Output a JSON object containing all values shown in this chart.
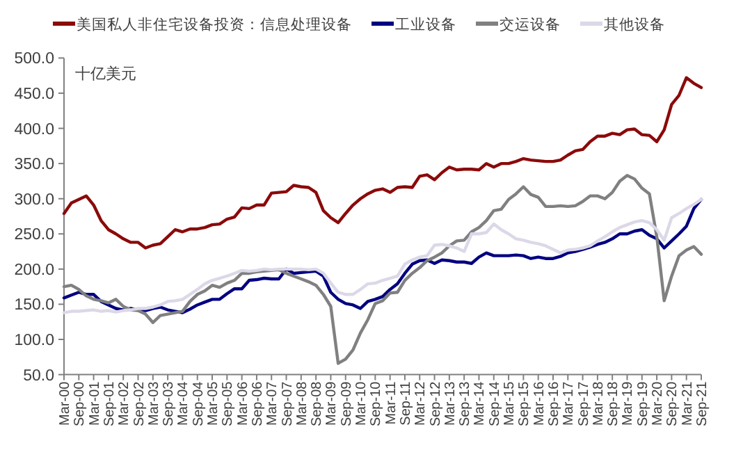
{
  "chart_data": {
    "type": "line",
    "legend": "top",
    "grid": false,
    "marker": "none",
    "line_style": "solid",
    "annotations": [
      "十亿美元"
    ],
    "ylim": [
      50,
      500
    ],
    "yticks": [
      {
        "value": 50,
        "label": "50.0"
      },
      {
        "value": 100,
        "label": "100.0"
      },
      {
        "value": 150,
        "label": "150.0"
      },
      {
        "value": 200,
        "label": "200.0"
      },
      {
        "value": 250,
        "label": "250.0"
      },
      {
        "value": 300,
        "label": "300.0"
      },
      {
        "value": 350,
        "label": "350.0"
      },
      {
        "value": 400,
        "label": "400.0"
      },
      {
        "value": 450,
        "label": "450.0"
      },
      {
        "value": 500,
        "label": "500.0"
      }
    ],
    "categories": [
      "Mar-00",
      null,
      "Sep-00",
      null,
      "Mar-01",
      null,
      "Sep-01",
      null,
      "Mar-02",
      null,
      "Sep-02",
      null,
      "Mar-03",
      null,
      "Sep-03",
      null,
      "Mar-04",
      null,
      "Sep-04",
      null,
      "Mar-05",
      null,
      "Sep-05",
      null,
      "Mar-06",
      null,
      "Sep-06",
      null,
      "Mar-07",
      null,
      "Sep-07",
      null,
      "Mar-08",
      null,
      "Sep-08",
      null,
      "Mar-09",
      null,
      "Sep-09",
      null,
      "Mar-10",
      null,
      "Sep-10",
      null,
      "Mar-11",
      null,
      "Sep-11",
      null,
      "Mar-12",
      null,
      "Sep-12",
      null,
      "Mar-13",
      null,
      "Sep-13",
      null,
      "Mar-14",
      null,
      "Sep-14",
      null,
      "Mar-15",
      null,
      "Sep-15",
      null,
      "Mar-16",
      null,
      "Sep-16",
      null,
      "Mar-17",
      null,
      "Sep-17",
      null,
      "Mar-18",
      null,
      "Sep-18",
      null,
      "Mar-19",
      null,
      "Sep-19",
      null,
      "Mar-20",
      null,
      "Sep-20",
      null,
      "Mar-21",
      null,
      "Sep-21"
    ],
    "series": [
      {
        "name": "美国私人非住宅设备投资：信息处理设备",
        "color": "#8b0a0a",
        "values": [
          279,
          294,
          299,
          304,
          291,
          269,
          256,
          250,
          243,
          238,
          238,
          230,
          234,
          236,
          246,
          256,
          253,
          257,
          257,
          259,
          263,
          264,
          271,
          274,
          287,
          286,
          291,
          291,
          308,
          309,
          310,
          319,
          317,
          316,
          309,
          283,
          273,
          266,
          279,
          291,
          300,
          307,
          312,
          314,
          309,
          316,
          317,
          316,
          332,
          334,
          327,
          337,
          345,
          341,
          342,
          342,
          341,
          350,
          345,
          350,
          350,
          353,
          357,
          355,
          354,
          353,
          353,
          355,
          362,
          368,
          370,
          381,
          389,
          389,
          393,
          391,
          398,
          399,
          391,
          390,
          381,
          398,
          434,
          447,
          472,
          464,
          458
        ]
      },
      {
        "name": "工业设备",
        "color": "#000080",
        "values": [
          159,
          163,
          167,
          164,
          164,
          154,
          149,
          144,
          142,
          144,
          142,
          141,
          144,
          146,
          142,
          140,
          138,
          143,
          149,
          153,
          157,
          157,
          165,
          172,
          172,
          184,
          185,
          187,
          186,
          186,
          200,
          194,
          195,
          196,
          197,
          190,
          167,
          157,
          151,
          149,
          144,
          154,
          157,
          161,
          171,
          179,
          194,
          207,
          212,
          213,
          208,
          213,
          212,
          210,
          210,
          208,
          217,
          223,
          219,
          219,
          219,
          220,
          219,
          215,
          217,
          215,
          215,
          218,
          223,
          225,
          228,
          231,
          235,
          238,
          243,
          250,
          250,
          254,
          256,
          248,
          243,
          230,
          240,
          250,
          261,
          286,
          299
        ]
      },
      {
        "name": "交运设备",
        "color": "#808080",
        "values": [
          175,
          177,
          171,
          162,
          157,
          155,
          152,
          157,
          147,
          142,
          141,
          136,
          124,
          134,
          136,
          138,
          140,
          154,
          164,
          169,
          177,
          174,
          180,
          184,
          194,
          194,
          196,
          197,
          198,
          199,
          194,
          190,
          186,
          182,
          177,
          164,
          147,
          66,
          72,
          85,
          109,
          128,
          151,
          155,
          166,
          167,
          184,
          194,
          202,
          212,
          217,
          223,
          233,
          240,
          241,
          253,
          259,
          269,
          283,
          285,
          299,
          307,
          317,
          306,
          302,
          289,
          289,
          290,
          289,
          290,
          296,
          304,
          304,
          300,
          309,
          325,
          333,
          328,
          315,
          307,
          246,
          155,
          190,
          219,
          227,
          232,
          221
        ]
      },
      {
        "name": "其他设备",
        "color": "#dcd8e8",
        "values": [
          138,
          140,
          140,
          141,
          142,
          140,
          141,
          139,
          141,
          142,
          144,
          144,
          146,
          149,
          154,
          155,
          157,
          164,
          171,
          179,
          184,
          187,
          190,
          194,
          198,
          197,
          198,
          200,
          199,
          200,
          200,
          200,
          200,
          199,
          200,
          194,
          180,
          167,
          164,
          164,
          171,
          179,
          180,
          184,
          187,
          190,
          207,
          213,
          217,
          219,
          234,
          235,
          233,
          230,
          225,
          250,
          250,
          252,
          264,
          256,
          250,
          243,
          241,
          238,
          236,
          233,
          228,
          223,
          227,
          228,
          230,
          233,
          240,
          246,
          253,
          259,
          263,
          267,
          269,
          266,
          256,
          241,
          273,
          279,
          286,
          292,
          299
        ]
      }
    ]
  }
}
